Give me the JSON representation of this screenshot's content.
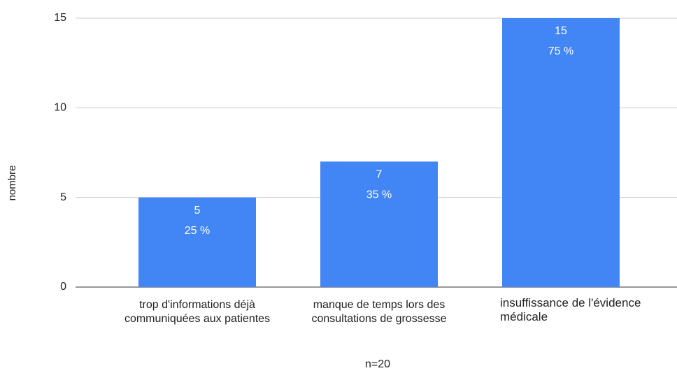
{
  "chart_data": {
    "type": "bar",
    "categories": [
      "trop d'informations déjà communiquées aux patientes",
      "manque de temps lors des consultations de grossesse",
      "insuffissance de l'évidence médicale"
    ],
    "values": [
      5,
      7,
      15
    ],
    "percentages": [
      25,
      35,
      75
    ],
    "percentage_labels": [
      "25 %",
      "35 %",
      "75 %"
    ],
    "color": "#4285f4",
    "y_label": "nombre",
    "x_label": "n=20",
    "ylim": [
      0,
      15
    ],
    "yticks": [
      0,
      5,
      10,
      15
    ],
    "grid": true
  }
}
